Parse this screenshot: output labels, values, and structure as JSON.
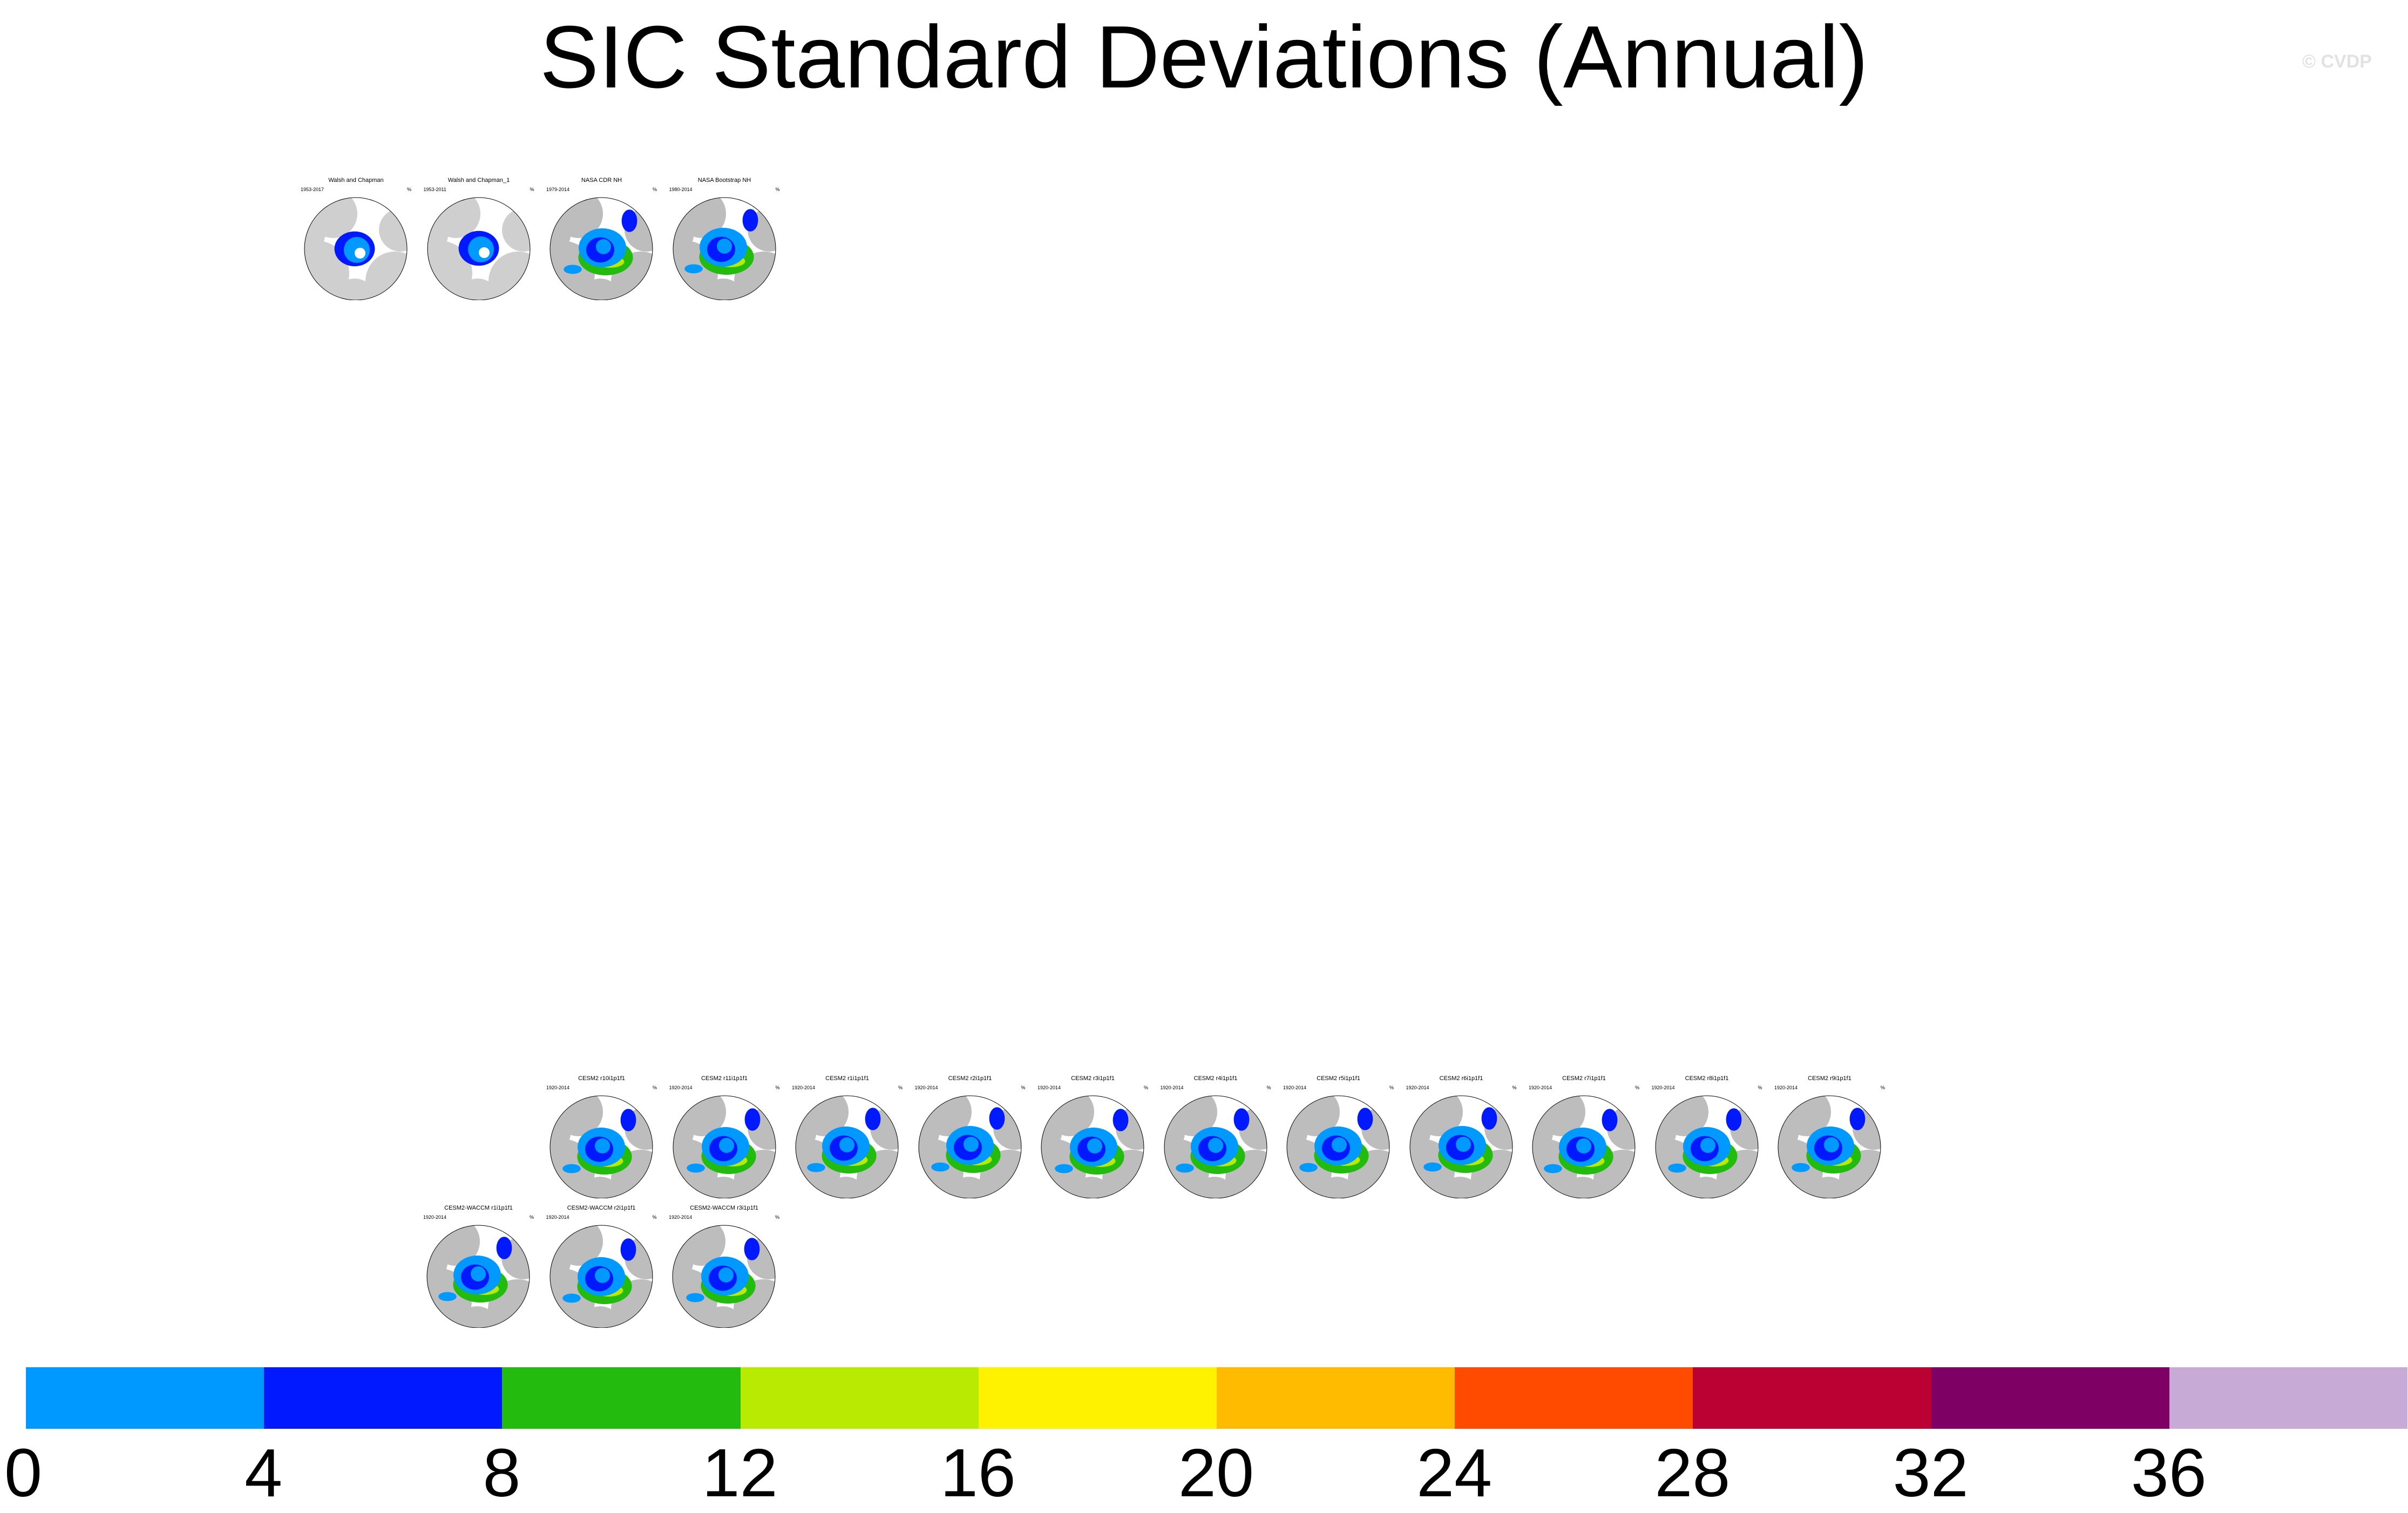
{
  "title": "SIC Standard Deviations (Annual)",
  "watermark": "© CVDP",
  "units": "%",
  "panel_rows": [
    [
      {
        "title": "Walsh and Chapman",
        "years": "1953-2017",
        "style": "obs-a"
      },
      {
        "title": "Walsh and Chapman_1",
        "years": "1953-2011",
        "style": "obs-a"
      },
      {
        "title": "NASA CDR NH",
        "years": "1979-2014",
        "style": "obs-b"
      },
      {
        "title": "NASA Bootstrap NH",
        "years": "1980-2014",
        "style": "obs-b"
      }
    ],
    [
      {
        "title": "CESM2 r10i1p1f1",
        "years": "1920-2014",
        "style": "model"
      },
      {
        "title": "CESM2 r11i1p1f1",
        "years": "1920-2014",
        "style": "model"
      },
      {
        "title": "CESM2 r1i1p1f1",
        "years": "1920-2014",
        "style": "model"
      },
      {
        "title": "CESM2 r2i1p1f1",
        "years": "1920-2014",
        "style": "model"
      },
      {
        "title": "CESM2 r3i1p1f1",
        "years": "1920-2014",
        "style": "model"
      },
      {
        "title": "CESM2 r4i1p1f1",
        "years": "1920-2014",
        "style": "model"
      },
      {
        "title": "CESM2 r5i1p1f1",
        "years": "1920-2014",
        "style": "model"
      },
      {
        "title": "CESM2 r6i1p1f1",
        "years": "1920-2014",
        "style": "model"
      },
      {
        "title": "CESM2 r7i1p1f1",
        "years": "1920-2014",
        "style": "model"
      },
      {
        "title": "CESM2 r8i1p1f1",
        "years": "1920-2014",
        "style": "model"
      },
      {
        "title": "CESM2 r9i1p1f1",
        "years": "1920-2014",
        "style": "model"
      }
    ],
    [
      {
        "title": "CESM2-WACCM r1i1p1f1",
        "years": "1920-2014",
        "style": "model"
      },
      {
        "title": "CESM2-WACCM r2i1p1f1",
        "years": "1920-2014",
        "style": "model"
      },
      {
        "title": "CESM2-WACCM r3i1p1f1",
        "years": "1920-2014",
        "style": "model"
      }
    ]
  ],
  "colorbar": {
    "colors": [
      "#0099ff",
      "#0019ff",
      "#22bb0e",
      "#b8ea02",
      "#fff200",
      "#ffbb00",
      "#ff4b00",
      "#bb0033",
      "#7e0065",
      "#c7aad6"
    ],
    "ticks": [
      "0",
      "4",
      "8",
      "12",
      "16",
      "20",
      "24",
      "28",
      "32",
      "36"
    ]
  }
}
